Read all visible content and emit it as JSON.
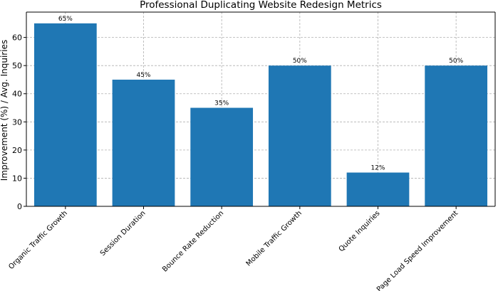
{
  "chart_data": {
    "type": "bar",
    "title": "Professional Duplicating Website Redesign Metrics",
    "xlabel": "",
    "ylabel": "Improvement (%) / Avg. Inquiries",
    "categories": [
      "Organic Traffic Growth",
      "Session Duration",
      "Bounce Rate Reduction",
      "Mobile Traffic Growth",
      "Quote Inquiries",
      "Page Load Speed Improvement"
    ],
    "values": [
      65,
      45,
      35,
      50,
      12,
      50
    ],
    "data_labels": [
      "65%",
      "45%",
      "35%",
      "50%",
      "12%",
      "50%"
    ],
    "ylim": [
      0,
      69
    ],
    "yticks": [
      0,
      10,
      20,
      30,
      40,
      50,
      60
    ],
    "grid": true,
    "bar_color": "#1f77b4"
  }
}
